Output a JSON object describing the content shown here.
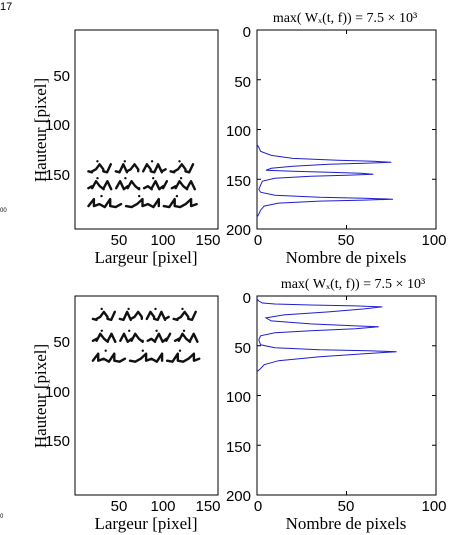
{
  "page": {
    "corner_label": "17",
    "edge_marks": [
      "00",
      "0"
    ]
  },
  "chart_data": [
    {
      "type": "image",
      "panel": "top-left",
      "xlabel": "Largeur [pixel]",
      "ylabel": "Hauteur [pixel]",
      "xlim": [
        0,
        160
      ],
      "ylim": [
        0,
        200
      ],
      "xticks": [
        50,
        100,
        150
      ],
      "yticks": [
        50,
        100,
        150
      ],
      "text_lines": [
        {
          "y": 142,
          "x_range": [
            15,
            132
          ],
          "words": 4
        },
        {
          "y": 159,
          "x_range": [
            15,
            134
          ],
          "words": 4
        },
        {
          "y": 177,
          "x_range": [
            15,
            136
          ],
          "words": 3
        }
      ]
    },
    {
      "type": "line",
      "panel": "top-right",
      "title": "max( Wₓ(t, f)) = 7.5 × 10³",
      "xlabel": "Nombre de pixels",
      "ylabel": "",
      "xlim": [
        0,
        100
      ],
      "ylim": [
        0,
        200
      ],
      "y_inverted": true,
      "xticks": [
        0,
        50,
        100
      ],
      "yticks": [
        0,
        50,
        100,
        150,
        200
      ],
      "series": [
        {
          "color": "#1f1fd0",
          "x": [
            0,
            1,
            2,
            8,
            20,
            45,
            65,
            75,
            60,
            40,
            20,
            8,
            5,
            20,
            40,
            58,
            65,
            50,
            30,
            10,
            3,
            2,
            1,
            2,
            10,
            35,
            60,
            76,
            60,
            35,
            12,
            4,
            2,
            1,
            0
          ],
          "y": [
            115,
            118,
            122,
            126,
            129,
            131,
            132,
            133,
            134,
            135,
            137,
            139,
            141,
            142,
            143,
            144,
            145,
            146,
            147,
            149,
            152,
            156,
            160,
            163,
            166,
            168,
            169,
            170,
            171,
            172,
            174,
            177,
            181,
            185,
            188
          ]
        }
      ]
    },
    {
      "type": "image",
      "panel": "bottom-left",
      "xlabel": "Largeur [pixel]",
      "ylabel": "Hauteur [pixel]",
      "xlim": [
        0,
        160
      ],
      "ylim": [
        0,
        200
      ],
      "xticks": [
        50,
        100,
        150
      ],
      "yticks": [
        50,
        100,
        150
      ],
      "text_lines": [
        {
          "y": 23,
          "x_range": [
            20,
            135
          ],
          "words": 4
        },
        {
          "y": 45,
          "x_range": [
            20,
            137
          ],
          "words": 4
        },
        {
          "y": 65,
          "x_range": [
            20,
            139
          ],
          "words": 3
        }
      ]
    },
    {
      "type": "line",
      "panel": "bottom-right",
      "title": "max( Wₓ(t, f)) = 7.5 × 10³",
      "xlabel": "Nombre de pixels",
      "ylabel": "",
      "xlim": [
        0,
        100
      ],
      "ylim": [
        0,
        200
      ],
      "y_inverted": true,
      "xticks": [
        0,
        50,
        100
      ],
      "yticks": [
        0,
        50,
        100,
        150,
        200
      ],
      "series": [
        {
          "color": "#1f1fd0",
          "x": [
            0,
            1,
            3,
            10,
            30,
            55,
            70,
            60,
            40,
            15,
            5,
            8,
            30,
            55,
            68,
            55,
            30,
            10,
            2,
            1,
            2,
            10,
            35,
            62,
            78,
            60,
            35,
            12,
            4,
            2,
            0
          ],
          "y": [
            3,
            5,
            7,
            8,
            9,
            10,
            11,
            13,
            16,
            19,
            22,
            25,
            28,
            30,
            31,
            33,
            35,
            37,
            40,
            44,
            49,
            52,
            54,
            55,
            56,
            58,
            61,
            65,
            69,
            73,
            76
          ]
        }
      ]
    }
  ]
}
